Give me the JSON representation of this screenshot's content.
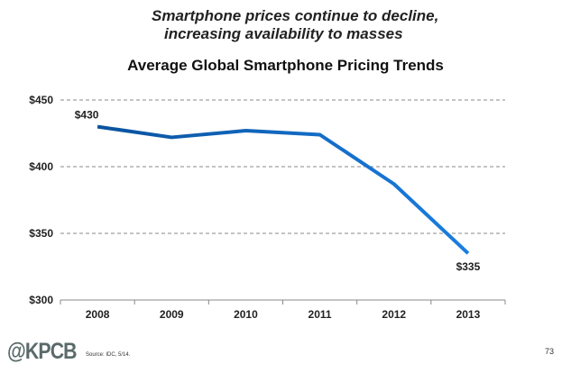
{
  "headline": [
    "Smartphone prices continue to decline,",
    "increasing availability to masses"
  ],
  "chart_data": {
    "type": "line",
    "title": "Average Global Smartphone Pricing Trends",
    "categories": [
      "2008",
      "2009",
      "2010",
      "2011",
      "2012",
      "2013"
    ],
    "values": [
      430,
      422,
      427,
      424,
      387,
      335
    ],
    "data_labels": {
      "2008": "$430",
      "2013": "$335"
    },
    "ylim": [
      300,
      450
    ],
    "yticks": [
      300,
      350,
      400,
      450
    ],
    "ytick_labels": [
      "$300",
      "$350",
      "$400",
      "$450"
    ],
    "grid": "dashed horizontal",
    "line_color_start": "#0a529e",
    "line_color_end": "#1a7ee0"
  },
  "footer": {
    "logo": "@KPCB",
    "source": "Source: IDC, 5/14.",
    "page_number": "73"
  }
}
